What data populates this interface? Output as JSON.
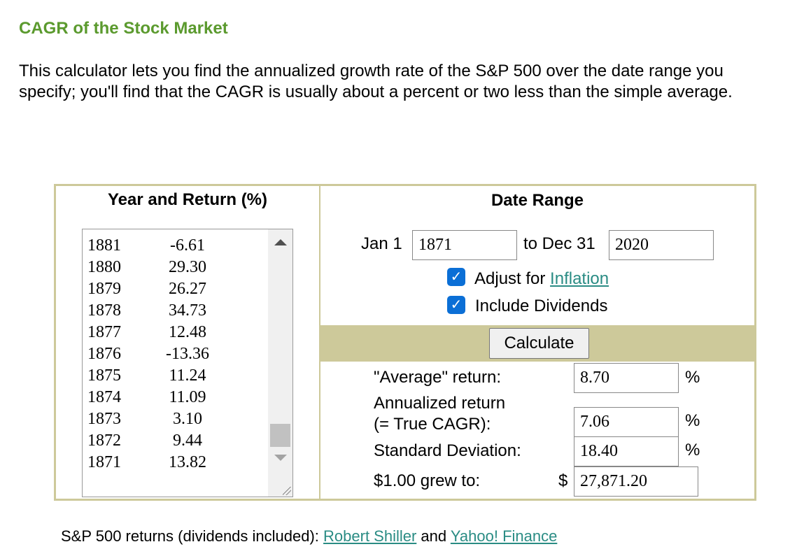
{
  "page": {
    "title": "CAGR of the Stock Market",
    "intro": "This calculator lets you find the annualized growth rate of the S&P 500 over the date range you specify; you'll find that the CAGR is usually about a percent or two less than the simple average."
  },
  "year_list": {
    "title": "Year and Return (%)",
    "rows": [
      {
        "year": "1881",
        "ret": "-6.61"
      },
      {
        "year": "1880",
        "ret": "29.30"
      },
      {
        "year": "1879",
        "ret": "26.27"
      },
      {
        "year": "1878",
        "ret": "34.73"
      },
      {
        "year": "1877",
        "ret": "12.48"
      },
      {
        "year": "1876",
        "ret": "-13.36"
      },
      {
        "year": "1875",
        "ret": "11.24"
      },
      {
        "year": "1874",
        "ret": "11.09"
      },
      {
        "year": "1873",
        "ret": "3.10"
      },
      {
        "year": "1872",
        "ret": "9.44"
      },
      {
        "year": "1871",
        "ret": "13.82"
      }
    ]
  },
  "date_range": {
    "title": "Date Range",
    "start_prefix": "Jan 1",
    "start_year": "1871",
    "end_prefix": "to Dec 31",
    "end_year": "2020",
    "inflation_label": "Adjust for ",
    "inflation_link": "Inflation",
    "dividends_label": "Include Dividends",
    "checkmark": "✓",
    "calculate_label": "Calculate"
  },
  "results": {
    "average_label": "\"Average\" return:",
    "average_value": "8.70",
    "annualized_label_1": "Annualized return",
    "annualized_label_2": "(= True CAGR):",
    "annualized_value": "7.06",
    "stddev_label": "Standard Deviation:",
    "stddev_value": "18.40",
    "grew_label": "$1.00 grew to:",
    "grew_currency": "$",
    "grew_value": "27,871.20",
    "percent": "%"
  },
  "footer": {
    "source_prefix": "S&P 500 returns (dividends included): ",
    "link1": "Robert Shiller",
    "and": " and ",
    "link2": "Yahoo! Finance"
  }
}
